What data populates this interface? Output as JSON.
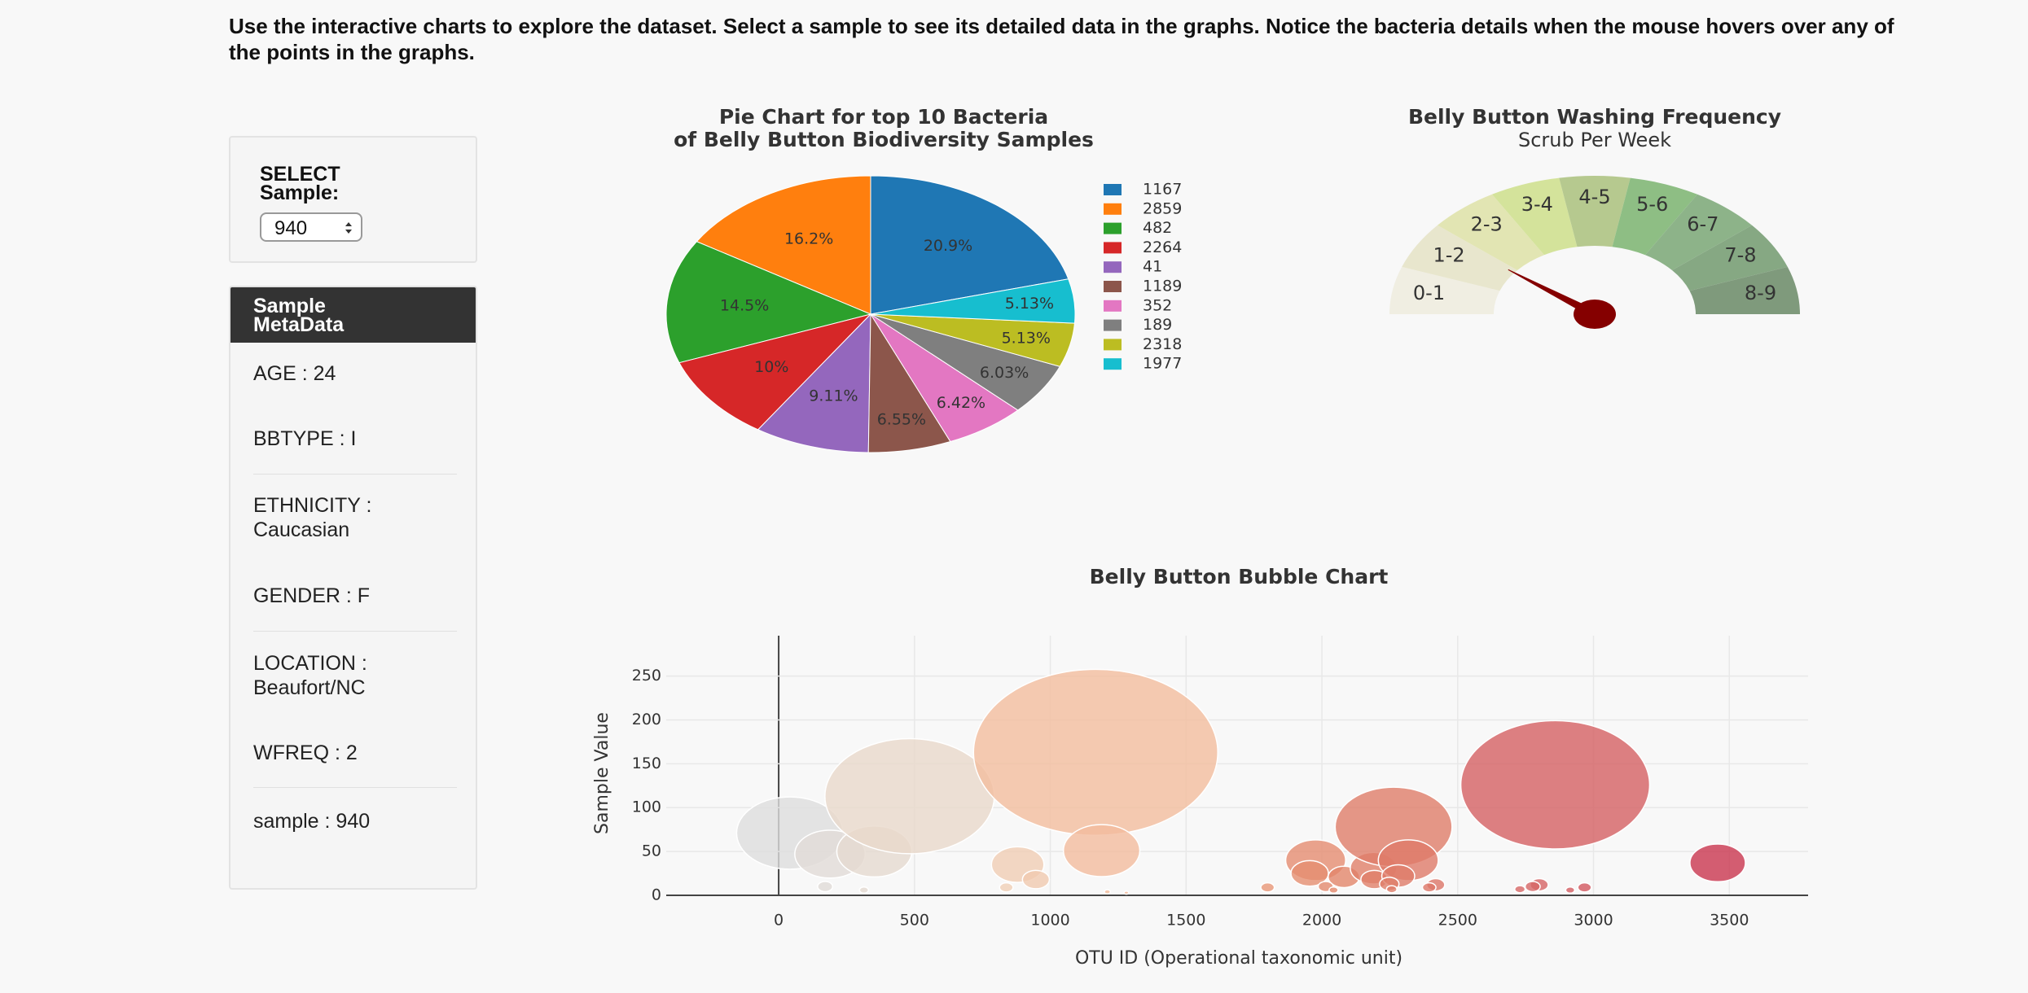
{
  "intro": "Use the interactive charts to explore the dataset. Select a sample to see its detailed data in the graphs. Notice the bacteria details when the mouse hovers over any of the points in the graphs.",
  "select": {
    "label": "SELECT Sample:",
    "value": "940"
  },
  "metadata": {
    "title": "Sample MetaData",
    "items": [
      "AGE : 24",
      "BBTYPE : I",
      "ETHNICITY : Caucasian",
      "GENDER : F",
      "LOCATION : Beaufort/NC",
      "WFREQ : 2",
      "sample : 940"
    ]
  },
  "chart_data": [
    {
      "type": "pie",
      "title": [
        "Pie Chart for top 10 Bacteria",
        "of Belly Button Biodiversity Samples"
      ],
      "categories": [
        "1167",
        "2859",
        "482",
        "2264",
        "41",
        "1189",
        "352",
        "189",
        "2318",
        "1977"
      ],
      "values": [
        20.9,
        16.2,
        14.5,
        10,
        9.11,
        6.55,
        6.42,
        6.03,
        5.13,
        5.13
      ],
      "value_labels": [
        "20.9%",
        "16.2%",
        "14.5%",
        "10%",
        "9.11%",
        "6.55%",
        "6.42%",
        "6.03%",
        "5.13%",
        "5.13%"
      ],
      "colors": [
        "#1f77b4",
        "#ff7f0e",
        "#2ca02c",
        "#d62728",
        "#9467bd",
        "#8c564b",
        "#e377c2",
        "#7f7f7f",
        "#bcbd22",
        "#17becf"
      ],
      "legend": "right"
    },
    {
      "type": "gauge",
      "title": "Belly Button Washing Frequency",
      "subtitle": "Scrub Per Week",
      "labels": [
        "0-1",
        "1-2",
        "2-3",
        "3-4",
        "4-5",
        "5-6",
        "6-7",
        "7-8",
        "8-9"
      ],
      "colors": [
        "#f0eee2",
        "#e8e6cd",
        "#e2e5b3",
        "#d4e39b",
        "#b6c98f",
        "#8ebe84",
        "#8db389",
        "#86a883",
        "#7f9a7c"
      ],
      "range": [
        0,
        9
      ],
      "value": 2,
      "needle_color": "#850000"
    },
    {
      "type": "bubble",
      "title": "Belly Button Bubble Chart",
      "x_label": "OTU ID (Operational taxonomic unit)",
      "y_label": "Sample Value",
      "x": [
        41,
        189,
        352,
        482,
        171,
        314,
        880,
        947,
        838,
        1167,
        1189,
        1210,
        1280,
        1800,
        1977,
        1955,
        2081,
        2014,
        2043,
        2190,
        2193,
        2264,
        2318,
        2281,
        2248,
        2257,
        2419,
        2395,
        2859,
        2729,
        2800,
        2776,
        2914,
        2967,
        3457
      ],
      "values": [
        71,
        47,
        50,
        113,
        10,
        6,
        35,
        18,
        9,
        163,
        51,
        4,
        3,
        9,
        40,
        25,
        21,
        10,
        6,
        31,
        18,
        78,
        40,
        22,
        13,
        7,
        12,
        9,
        126,
        7,
        12,
        10,
        6,
        9,
        37
      ],
      "sizes": [
        71,
        47,
        50,
        113,
        10,
        6,
        35,
        18,
        9,
        163,
        51,
        4,
        3,
        9,
        40,
        25,
        21,
        10,
        6,
        31,
        18,
        78,
        40,
        22,
        13,
        7,
        12,
        9,
        126,
        7,
        12,
        10,
        6,
        9,
        37
      ],
      "colorscale": [
        "#dddddd",
        "#efd5c0",
        "#f3b08c",
        "#e2856a",
        "#d66666",
        "#c9364f"
      ],
      "xlim": [
        -414,
        3790
      ],
      "ylim": [
        0,
        296
      ],
      "xticks": [
        0,
        500,
        1000,
        1500,
        2000,
        2500,
        3000,
        3500
      ],
      "yticks": [
        0,
        50,
        100,
        150,
        200,
        250
      ],
      "grid": true
    }
  ]
}
